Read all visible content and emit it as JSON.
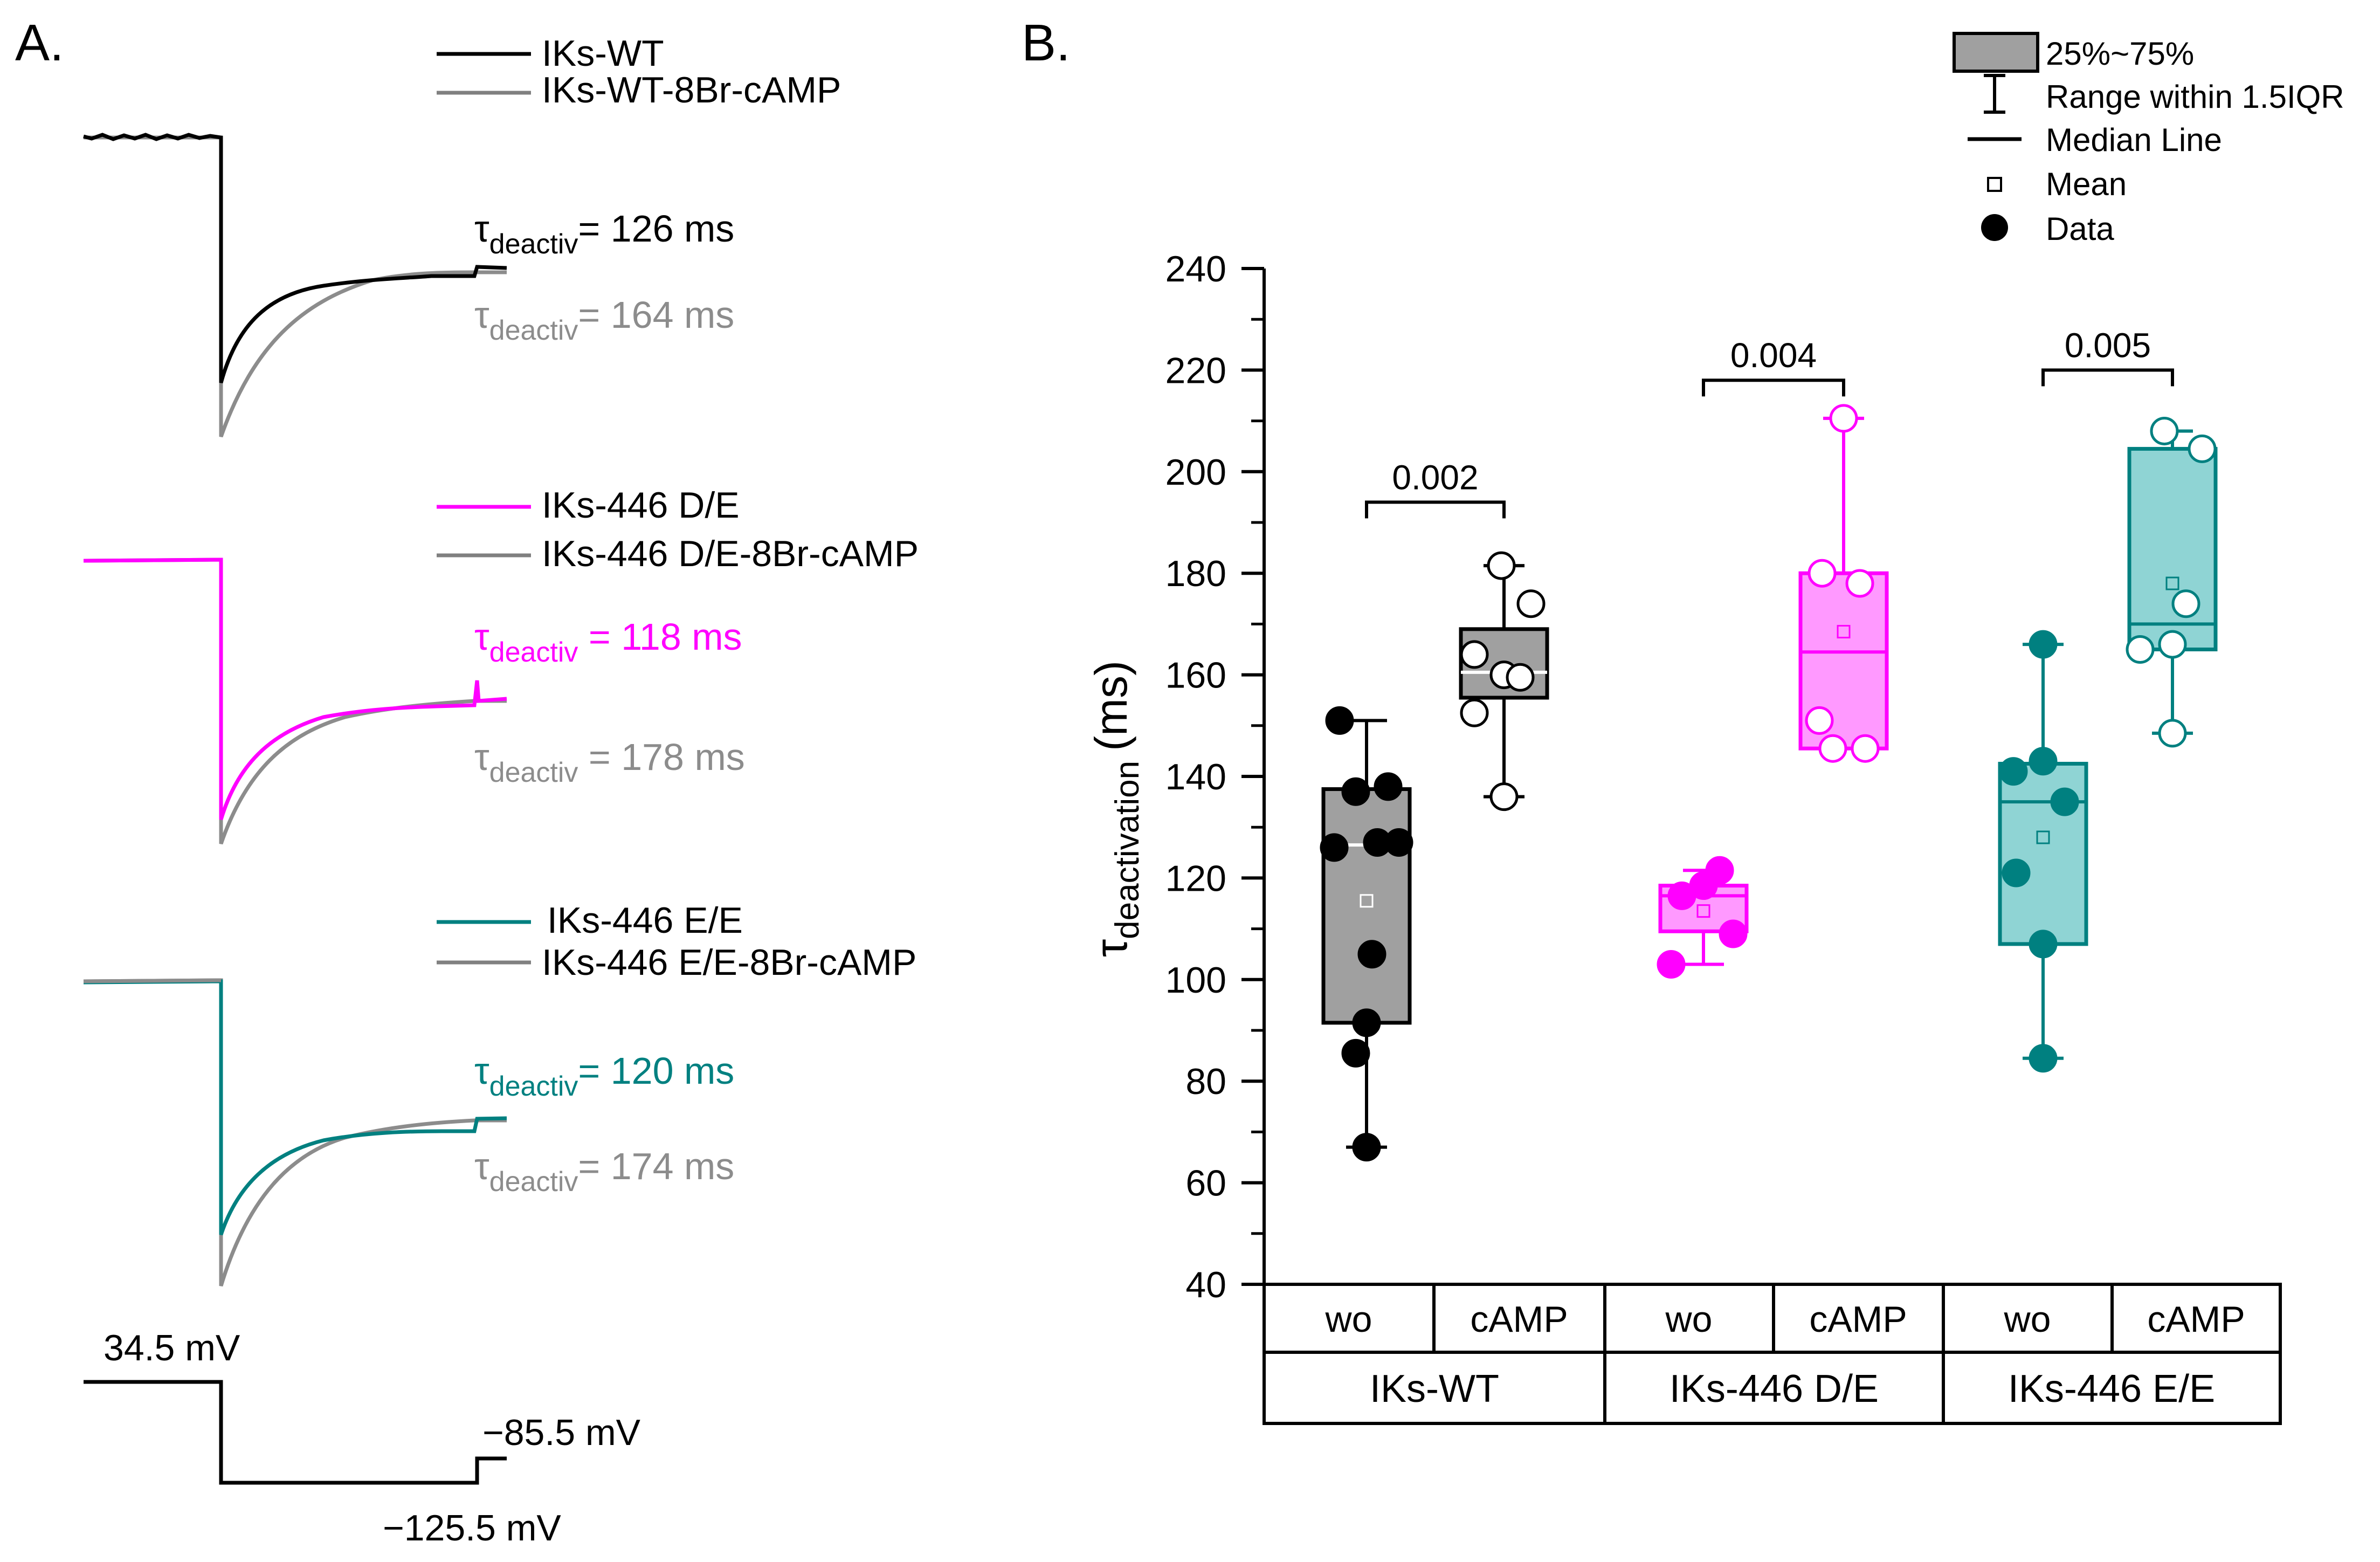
{
  "panel_a": {
    "label": "A.",
    "groups": [
      {
        "legend": [
          {
            "name": "IKs-WT",
            "color": "#000000"
          },
          {
            "name": "IKs-WT-8Br-cAMP",
            "color": "#808080"
          }
        ],
        "tau_symbol": "τ",
        "tau_sub": "deactiv",
        "tau": [
          {
            "text": "= 126 ms",
            "color": "#000000"
          },
          {
            "text": "= 164 ms",
            "color": "#8c8c8c"
          }
        ]
      },
      {
        "legend": [
          {
            "name": "IKs-446 D/E",
            "color": "#ff00ff"
          },
          {
            "name": "IKs-446 D/E-8Br-cAMP",
            "color": "#808080"
          }
        ],
        "tau_symbol": "τ",
        "tau_sub": "deactiv",
        "tau": [
          {
            "text": " = 118 ms",
            "color": "#ff00ff"
          },
          {
            "text": " = 178 ms",
            "color": "#8c8c8c"
          }
        ]
      },
      {
        "legend": [
          {
            "name": "IKs-446 E/E",
            "color": "#008080"
          },
          {
            "name": "IKs-446 E/E-8Br-cAMP",
            "color": "#808080"
          }
        ],
        "tau_symbol": "τ",
        "tau_sub": "deactiv",
        "tau": [
          {
            "text": "= 120 ms",
            "color": "#008080"
          },
          {
            "text": "= 174 ms",
            "color": "#8c8c8c"
          }
        ]
      }
    ],
    "protocol": {
      "v_hold": "34.5 mV",
      "v_step": "−125.5 mV",
      "v_return": "−85.5 mV"
    }
  },
  "chart_data": {
    "type": "box",
    "panel_label": "B.",
    "title": "",
    "ylabel_symbol": "τ",
    "ylabel_sub": "deactivation",
    "ylabel_unit": "(ms)",
    "ylim": [
      40,
      240
    ],
    "yticks": [
      40,
      60,
      80,
      100,
      120,
      140,
      160,
      180,
      200,
      220,
      240
    ],
    "categories": [
      "wo",
      "cAMP",
      "wo",
      "cAMP",
      "wo",
      "cAMP"
    ],
    "groups": [
      "IKs-WT",
      "IKs-446 D/E",
      "IKs-446 E/E"
    ],
    "boxes": [
      {
        "group": "IKs-WT",
        "condition": "wo",
        "color": "#a0a0a0",
        "edge": "#000000",
        "median_color": "#ffffff",
        "fill_marker": "#000000",
        "q1": 91.5,
        "q3": 137.5,
        "median": 126.5,
        "mean": 115.5,
        "whisker_low": 67,
        "whisker_high": 151,
        "points": [
          151,
          138,
          137,
          127,
          127,
          126,
          105,
          91.5,
          85.5,
          67
        ]
      },
      {
        "group": "IKs-WT",
        "condition": "cAMP",
        "color": "#a0a0a0",
        "edge": "#000000",
        "median_color": "#ffffff",
        "fill_marker": "#ffffff",
        "q1": 155.5,
        "q3": 169,
        "median": 160.5,
        "mean": 160.5,
        "whisker_low": 136,
        "whisker_high": 181.5,
        "points": [
          181.5,
          174,
          164,
          160,
          159.5,
          152.5,
          136
        ]
      },
      {
        "group": "IKs-446 D/E",
        "condition": "wo",
        "color": "#ff99ff",
        "edge": "#ff00ff",
        "median_color": "#ff00ff",
        "fill_marker": "#ff00ff",
        "q1": 109.5,
        "q3": 118.5,
        "median": 116.5,
        "mean": 113.5,
        "whisker_low": 103,
        "whisker_high": 121.5,
        "points": [
          121.5,
          118.5,
          116.5,
          109,
          103
        ]
      },
      {
        "group": "IKs-446 D/E",
        "condition": "cAMP",
        "color": "#ff99ff",
        "edge": "#ff00ff",
        "median_color": "#ff00ff",
        "fill_marker": "#ffffff",
        "q1": 145.5,
        "q3": 180,
        "median": 164.5,
        "mean": 168.5,
        "whisker_low": 145.5,
        "whisker_high": 210.5,
        "points": [
          210.5,
          180,
          178,
          151,
          145.5,
          145.5
        ]
      },
      {
        "group": "IKs-446 E/E",
        "condition": "wo",
        "color": "#8fd4d4",
        "edge": "#008080",
        "median_color": "#008080",
        "fill_marker": "#008080",
        "q1": 107,
        "q3": 142.5,
        "median": 135,
        "mean": 128,
        "whisker_low": 84.5,
        "whisker_high": 166,
        "points": [
          166,
          143,
          141,
          135,
          121,
          107,
          84.5
        ]
      },
      {
        "group": "IKs-446 E/E",
        "condition": "cAMP",
        "color": "#8fd4d4",
        "edge": "#008080",
        "median_color": "#008080",
        "fill_marker": "#ffffff",
        "q1": 165,
        "q3": 204.5,
        "median": 170,
        "mean": 178,
        "whisker_low": 148.5,
        "whisker_high": 208,
        "points": [
          208,
          204.5,
          174,
          166,
          165,
          148.5
        ]
      }
    ],
    "significance": [
      {
        "label": "0.002",
        "y": 194
      },
      {
        "label": "0.004",
        "y": 218
      },
      {
        "label": "0.005",
        "y": 220
      }
    ],
    "legend": [
      "25%~75%",
      "Range within 1.5IQR",
      "Median Line",
      "Mean",
      "Data"
    ]
  }
}
